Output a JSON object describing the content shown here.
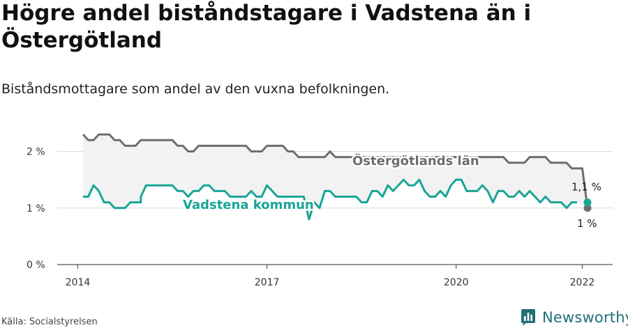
{
  "title": "Högre andel biståndstagare i Vadstena än i Östergötland",
  "subtitle": "Biståndsmottagare som andel av den vuxna befolkningen.",
  "source": "Källa: Socialstyrelsen",
  "brand": {
    "name": "Newsworthy",
    "icon": "newsworthy-logo-icon",
    "color": "#1f6e78"
  },
  "chart_data": {
    "type": "line",
    "x_ticks": [
      "2014",
      "2017",
      "2020",
      "2022"
    ],
    "y_ticks": [
      "0 %",
      "1 %",
      "2 %"
    ],
    "ylim": [
      0,
      2.4
    ],
    "xlim": [
      "2014-01",
      "2022-01"
    ],
    "grid": true,
    "series": [
      {
        "name": "Östergötlands län",
        "color": "#6e6c73",
        "end_label": "1 %",
        "points": [
          [
            "2014-01",
            2.3
          ],
          [
            "2014-02",
            2.2
          ],
          [
            "2014-03",
            2.2
          ],
          [
            "2014-04",
            2.3
          ],
          [
            "2014-06",
            2.3
          ],
          [
            "2014-07",
            2.2
          ],
          [
            "2014-08",
            2.2
          ],
          [
            "2014-09",
            2.1
          ],
          [
            "2014-11",
            2.1
          ],
          [
            "2014-12",
            2.2
          ],
          [
            "2015-06",
            2.2
          ],
          [
            "2015-07",
            2.1
          ],
          [
            "2015-08",
            2.1
          ],
          [
            "2015-09",
            2.0
          ],
          [
            "2015-10",
            2.0
          ],
          [
            "2015-11",
            2.1
          ],
          [
            "2016-08",
            2.1
          ],
          [
            "2016-09",
            2.0
          ],
          [
            "2016-11",
            2.0
          ],
          [
            "2017-00",
            2.1
          ],
          [
            "2017-03",
            2.1
          ],
          [
            "2017-04",
            2.0
          ],
          [
            "2017-05",
            2.0
          ],
          [
            "2017-06",
            1.9
          ],
          [
            "2017-11",
            1.9
          ],
          [
            "2018-00",
            2.0
          ],
          [
            "2018-01",
            1.9
          ],
          [
            "2018-02",
            1.9
          ],
          [
            "2019-00",
            1.9
          ],
          [
            "2019-06",
            1.9
          ],
          [
            "2019-10",
            1.9
          ],
          [
            "2020-06",
            1.9
          ],
          [
            "2020-09",
            1.9
          ],
          [
            "2020-10",
            1.8
          ],
          [
            "2021-01",
            1.8
          ],
          [
            "2021-02",
            1.9
          ],
          [
            "2021-05",
            1.9
          ],
          [
            "2021-06",
            1.8
          ],
          [
            "2021-09",
            1.8
          ],
          [
            "2021-10",
            1.7
          ],
          [
            "2021-12",
            1.7
          ],
          [
            "2022-01",
            1.0
          ]
        ]
      },
      {
        "name": "Vadstena kommun",
        "color": "#19a596",
        "end_label": "1,1 %",
        "points": [
          [
            "2014-01",
            1.2
          ],
          [
            "2014-02",
            1.2
          ],
          [
            "2014-03",
            1.4
          ],
          [
            "2014-04",
            1.3
          ],
          [
            "2014-05",
            1.1
          ],
          [
            "2014-06",
            1.1
          ],
          [
            "2014-07",
            1.0
          ],
          [
            "2014-09",
            1.0
          ],
          [
            "2014-10",
            1.1
          ],
          [
            "2014-12",
            1.1
          ],
          [
            "2015-00",
            1.2
          ],
          [
            "2015-01",
            1.4
          ],
          [
            "2015-06",
            1.4
          ],
          [
            "2015-07",
            1.3
          ],
          [
            "2015-08",
            1.3
          ],
          [
            "2015-09",
            1.2
          ],
          [
            "2015-10",
            1.3
          ],
          [
            "2015-11",
            1.3
          ],
          [
            "2016-00",
            1.4
          ],
          [
            "2016-01",
            1.4
          ],
          [
            "2016-02",
            1.3
          ],
          [
            "2016-04",
            1.3
          ],
          [
            "2016-05",
            1.2
          ],
          [
            "2016-08",
            1.2
          ],
          [
            "2016-09",
            1.3
          ],
          [
            "2016-10",
            1.2
          ],
          [
            "2016-11",
            1.2
          ],
          [
            "2017-00",
            1.4
          ],
          [
            "2017-01",
            1.3
          ],
          [
            "2017-02",
            1.2
          ],
          [
            "2017-07",
            1.2
          ],
          [
            "2017-08",
            0.8
          ],
          [
            "2017-09",
            1.1
          ],
          [
            "2017-10",
            1.0
          ],
          [
            "2017-11",
            1.3
          ],
          [
            "2018-00",
            1.3
          ],
          [
            "2018-01",
            1.2
          ],
          [
            "2018-05",
            1.2
          ],
          [
            "2018-06",
            1.1
          ],
          [
            "2018-07",
            1.1
          ],
          [
            "2018-08",
            1.3
          ],
          [
            "2018-09",
            1.3
          ],
          [
            "2018-10",
            1.2
          ],
          [
            "2018-11",
            1.4
          ],
          [
            "2019-00",
            1.3
          ],
          [
            "2019-01",
            1.4
          ],
          [
            "2019-02",
            1.5
          ],
          [
            "2019-03",
            1.4
          ],
          [
            "2019-04",
            1.4
          ],
          [
            "2019-05",
            1.5
          ],
          [
            "2019-06",
            1.3
          ],
          [
            "2019-07",
            1.2
          ],
          [
            "2019-08",
            1.2
          ],
          [
            "2019-09",
            1.3
          ],
          [
            "2019-10",
            1.2
          ],
          [
            "2019-11",
            1.4
          ],
          [
            "2020-00",
            1.5
          ],
          [
            "2020-01",
            1.5
          ],
          [
            "2020-02",
            1.3
          ],
          [
            "2020-04",
            1.3
          ],
          [
            "2020-05",
            1.4
          ],
          [
            "2020-06",
            1.3
          ],
          [
            "2020-07",
            1.1
          ],
          [
            "2020-08",
            1.3
          ],
          [
            "2020-09",
            1.3
          ],
          [
            "2020-10",
            1.2
          ],
          [
            "2020-11",
            1.2
          ],
          [
            "2021-00",
            1.3
          ],
          [
            "2021-01",
            1.2
          ],
          [
            "2021-02",
            1.3
          ],
          [
            "2021-03",
            1.2
          ],
          [
            "2021-04",
            1.1
          ],
          [
            "2021-05",
            1.2
          ],
          [
            "2021-06",
            1.1
          ],
          [
            "2021-08",
            1.1
          ],
          [
            "2021-09",
            1.0
          ],
          [
            "2021-10",
            1.1
          ],
          [
            "2021-11",
            1.1
          ]
        ]
      }
    ]
  }
}
